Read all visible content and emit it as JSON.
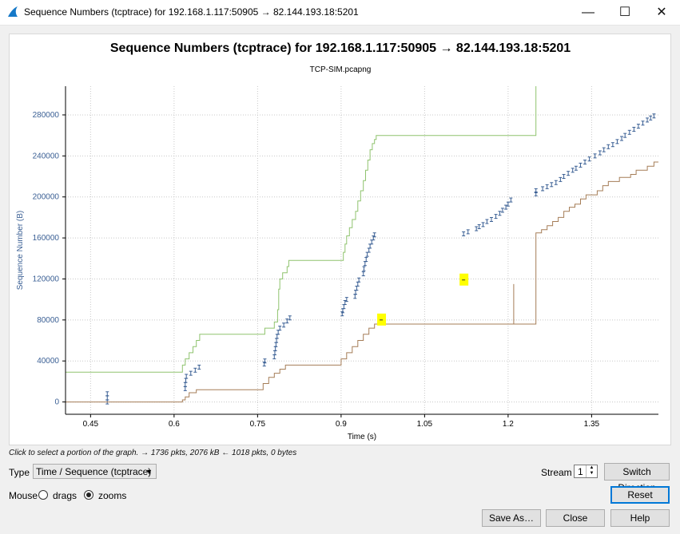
{
  "window": {
    "title": "Sequence Numbers (tcptrace) for 192.168.1.117:50905 → 82.144.193.18:5201",
    "minimize_glyph": "—",
    "maximize_glyph": "☐",
    "close_glyph": "✕"
  },
  "graph": {
    "title": "Sequence Numbers (tcptrace) for 192.168.1.117:50905 → 82.144.193.18:5201",
    "subtitle": "TCP-SIM.pcapng"
  },
  "chart_data": {
    "type": "line",
    "xlabel": "Time (s)",
    "ylabel": "Sequence Number (B)",
    "xlim": [
      0.405,
      1.47
    ],
    "ylim": [
      -12000,
      308000
    ],
    "x_ticks": [
      0.45,
      0.6,
      0.75,
      0.9,
      1.05,
      1.2,
      1.35
    ],
    "x_tick_labels": [
      "0.45",
      "0.6",
      "0.75",
      "0.9",
      "1.05",
      "1.2",
      "1.35"
    ],
    "y_ticks": [
      0,
      40000,
      80000,
      120000,
      160000,
      200000,
      240000,
      280000
    ],
    "y_tick_labels": [
      "0",
      "40000",
      "80000",
      "120000",
      "160000",
      "200000",
      "240000",
      "280000"
    ],
    "grid": true,
    "colors": {
      "segments": "#3a5f94",
      "window": "#8fc36e",
      "ack": "#a57d57",
      "highlight": "#ffff00"
    },
    "series": [
      {
        "kind": "segments",
        "points": [
          [
            0.48,
            0
          ],
          [
            0.48,
            4000
          ],
          [
            0.48,
            8000
          ],
          [
            0.62,
            13000
          ],
          [
            0.62,
            17000
          ],
          [
            0.621,
            21000
          ],
          [
            0.622,
            25000
          ],
          [
            0.63,
            28000
          ],
          [
            0.638,
            31000
          ],
          [
            0.645,
            34000
          ],
          [
            0.762,
            37000
          ],
          [
            0.763,
            40000
          ],
          [
            0.78,
            44000
          ],
          [
            0.781,
            48000
          ],
          [
            0.782,
            52000
          ],
          [
            0.783,
            56000
          ],
          [
            0.784,
            60000
          ],
          [
            0.785,
            64000
          ],
          [
            0.787,
            68000
          ],
          [
            0.79,
            72000
          ],
          [
            0.797,
            75000
          ],
          [
            0.803,
            79000
          ],
          [
            0.808,
            82000
          ],
          [
            0.902,
            86000
          ],
          [
            0.903,
            89000
          ],
          [
            0.905,
            93000
          ],
          [
            0.907,
            97000
          ],
          [
            0.91,
            100000
          ],
          [
            0.925,
            103000
          ],
          [
            0.926,
            107000
          ],
          [
            0.928,
            111000
          ],
          [
            0.93,
            115000
          ],
          [
            0.932,
            119000
          ],
          [
            0.94,
            125000
          ],
          [
            0.941,
            130000
          ],
          [
            0.943,
            135000
          ],
          [
            0.945,
            139000
          ],
          [
            0.947,
            144000
          ],
          [
            0.95,
            148000
          ],
          [
            0.952,
            152000
          ],
          [
            0.955,
            156000
          ],
          [
            0.958,
            160000
          ],
          [
            0.96,
            163000
          ],
          [
            1.12,
            164000
          ],
          [
            1.128,
            166000
          ],
          [
            1.143,
            169000
          ],
          [
            1.148,
            171000
          ],
          [
            1.155,
            173000
          ],
          [
            1.162,
            176000
          ],
          [
            1.17,
            178000
          ],
          [
            1.178,
            181000
          ],
          [
            1.185,
            184000
          ],
          [
            1.19,
            187000
          ],
          [
            1.196,
            190000
          ],
          [
            1.2,
            193000
          ],
          [
            1.205,
            197000
          ],
          [
            1.25,
            203000
          ],
          [
            1.25,
            206000
          ],
          [
            1.262,
            208000
          ],
          [
            1.27,
            210000
          ],
          [
            1.278,
            212000
          ],
          [
            1.286,
            214000
          ],
          [
            1.294,
            217000
          ],
          [
            1.3,
            220000
          ],
          [
            1.308,
            223000
          ],
          [
            1.316,
            226000
          ],
          [
            1.322,
            228000
          ],
          [
            1.33,
            231000
          ],
          [
            1.338,
            234000
          ],
          [
            1.346,
            237000
          ],
          [
            1.356,
            240000
          ],
          [
            1.365,
            243000
          ],
          [
            1.372,
            246000
          ],
          [
            1.38,
            249000
          ],
          [
            1.388,
            251000
          ],
          [
            1.396,
            254000
          ],
          [
            1.404,
            257000
          ],
          [
            1.41,
            260000
          ],
          [
            1.418,
            263000
          ],
          [
            1.426,
            266000
          ],
          [
            1.434,
            269000
          ],
          [
            1.442,
            272000
          ],
          [
            1.45,
            275000
          ],
          [
            1.456,
            277000
          ],
          [
            1.462,
            279000
          ]
        ]
      },
      {
        "kind": "window",
        "points": [
          [
            0.405,
            29000
          ],
          [
            0.615,
            29000
          ],
          [
            0.615,
            36000
          ],
          [
            0.62,
            36000
          ],
          [
            0.62,
            42000
          ],
          [
            0.627,
            42000
          ],
          [
            0.627,
            48000
          ],
          [
            0.634,
            48000
          ],
          [
            0.634,
            54000
          ],
          [
            0.64,
            54000
          ],
          [
            0.64,
            60000
          ],
          [
            0.646,
            60000
          ],
          [
            0.646,
            66000
          ],
          [
            0.763,
            66000
          ],
          [
            0.763,
            72000
          ],
          [
            0.78,
            72000
          ],
          [
            0.78,
            78000
          ],
          [
            0.786,
            78000
          ],
          [
            0.786,
            90000
          ],
          [
            0.788,
            90000
          ],
          [
            0.788,
            110000
          ],
          [
            0.79,
            110000
          ],
          [
            0.79,
            120000
          ],
          [
            0.795,
            120000
          ],
          [
            0.795,
            126000
          ],
          [
            0.803,
            126000
          ],
          [
            0.803,
            132000
          ],
          [
            0.806,
            132000
          ],
          [
            0.806,
            138000
          ],
          [
            0.904,
            138000
          ],
          [
            0.904,
            146000
          ],
          [
            0.907,
            146000
          ],
          [
            0.907,
            154000
          ],
          [
            0.91,
            154000
          ],
          [
            0.91,
            162000
          ],
          [
            0.915,
            162000
          ],
          [
            0.915,
            170000
          ],
          [
            0.92,
            170000
          ],
          [
            0.92,
            178000
          ],
          [
            0.926,
            178000
          ],
          [
            0.926,
            186000
          ],
          [
            0.93,
            186000
          ],
          [
            0.93,
            196000
          ],
          [
            0.935,
            196000
          ],
          [
            0.935,
            206000
          ],
          [
            0.94,
            206000
          ],
          [
            0.94,
            216000
          ],
          [
            0.944,
            216000
          ],
          [
            0.944,
            226000
          ],
          [
            0.948,
            226000
          ],
          [
            0.948,
            236000
          ],
          [
            0.952,
            236000
          ],
          [
            0.952,
            246000
          ],
          [
            0.956,
            246000
          ],
          [
            0.956,
            252000
          ],
          [
            0.96,
            252000
          ],
          [
            0.96,
            256000
          ],
          [
            0.963,
            256000
          ],
          [
            0.963,
            260000
          ],
          [
            1.25,
            260000
          ],
          [
            1.25,
            308000
          ]
        ]
      },
      {
        "kind": "ack",
        "points": [
          [
            0.405,
            0
          ],
          [
            0.615,
            0
          ],
          [
            0.615,
            2000
          ],
          [
            0.62,
            2000
          ],
          [
            0.62,
            5000
          ],
          [
            0.627,
            5000
          ],
          [
            0.627,
            9000
          ],
          [
            0.64,
            9000
          ],
          [
            0.64,
            12000
          ],
          [
            0.76,
            12000
          ],
          [
            0.76,
            18000
          ],
          [
            0.77,
            18000
          ],
          [
            0.77,
            24000
          ],
          [
            0.78,
            24000
          ],
          [
            0.78,
            28000
          ],
          [
            0.79,
            28000
          ],
          [
            0.79,
            32000
          ],
          [
            0.8,
            32000
          ],
          [
            0.8,
            36000
          ],
          [
            0.81,
            36000
          ],
          [
            0.9,
            36000
          ],
          [
            0.9,
            42000
          ],
          [
            0.91,
            42000
          ],
          [
            0.91,
            48000
          ],
          [
            0.92,
            48000
          ],
          [
            0.92,
            54000
          ],
          [
            0.93,
            54000
          ],
          [
            0.93,
            60000
          ],
          [
            0.94,
            60000
          ],
          [
            0.94,
            66000
          ],
          [
            0.95,
            66000
          ],
          [
            0.95,
            72000
          ],
          [
            0.96,
            72000
          ],
          [
            0.96,
            76000
          ],
          [
            1.21,
            76000
          ],
          [
            1.21,
            115000
          ],
          [
            1.21,
            76000
          ],
          [
            1.25,
            76000
          ],
          [
            1.25,
            165000
          ],
          [
            1.26,
            165000
          ],
          [
            1.26,
            168000
          ],
          [
            1.27,
            168000
          ],
          [
            1.27,
            172000
          ],
          [
            1.28,
            172000
          ],
          [
            1.28,
            176000
          ],
          [
            1.29,
            176000
          ],
          [
            1.29,
            180000
          ],
          [
            1.3,
            180000
          ],
          [
            1.3,
            186000
          ],
          [
            1.31,
            186000
          ],
          [
            1.31,
            190000
          ],
          [
            1.32,
            190000
          ],
          [
            1.32,
            193000
          ],
          [
            1.33,
            193000
          ],
          [
            1.33,
            198000
          ],
          [
            1.34,
            198000
          ],
          [
            1.34,
            202000
          ],
          [
            1.36,
            202000
          ],
          [
            1.36,
            206000
          ],
          [
            1.37,
            206000
          ],
          [
            1.37,
            211000
          ],
          [
            1.38,
            211000
          ],
          [
            1.38,
            215000
          ],
          [
            1.4,
            215000
          ],
          [
            1.4,
            219000
          ],
          [
            1.42,
            219000
          ],
          [
            1.42,
            222000
          ],
          [
            1.43,
            222000
          ],
          [
            1.43,
            226000
          ],
          [
            1.45,
            226000
          ],
          [
            1.45,
            230000
          ],
          [
            1.462,
            230000
          ],
          [
            1.462,
            234000
          ],
          [
            1.47,
            234000
          ]
        ]
      },
      {
        "kind": "highlight",
        "points": [
          [
            0.972,
            80000
          ],
          [
            1.12,
            119000
          ]
        ]
      }
    ]
  },
  "controls": {
    "hint_text": "Click to select a portion of the graph. → 1736 pkts, 2076 kB ← 1018 pkts, 0 bytes",
    "type_label": "Type",
    "type_value": "Time / Sequence (tcptrace)",
    "stream_label": "Stream",
    "stream_value": "1",
    "switch_direction_label": "Switch Direction",
    "mouse_label": "Mouse",
    "drags_label": "drags",
    "zooms_label": "zooms",
    "mouse_mode": "zooms",
    "reset_label": "Reset",
    "save_as_label": "Save As…",
    "close_label": "Close",
    "help_label": "Help"
  }
}
